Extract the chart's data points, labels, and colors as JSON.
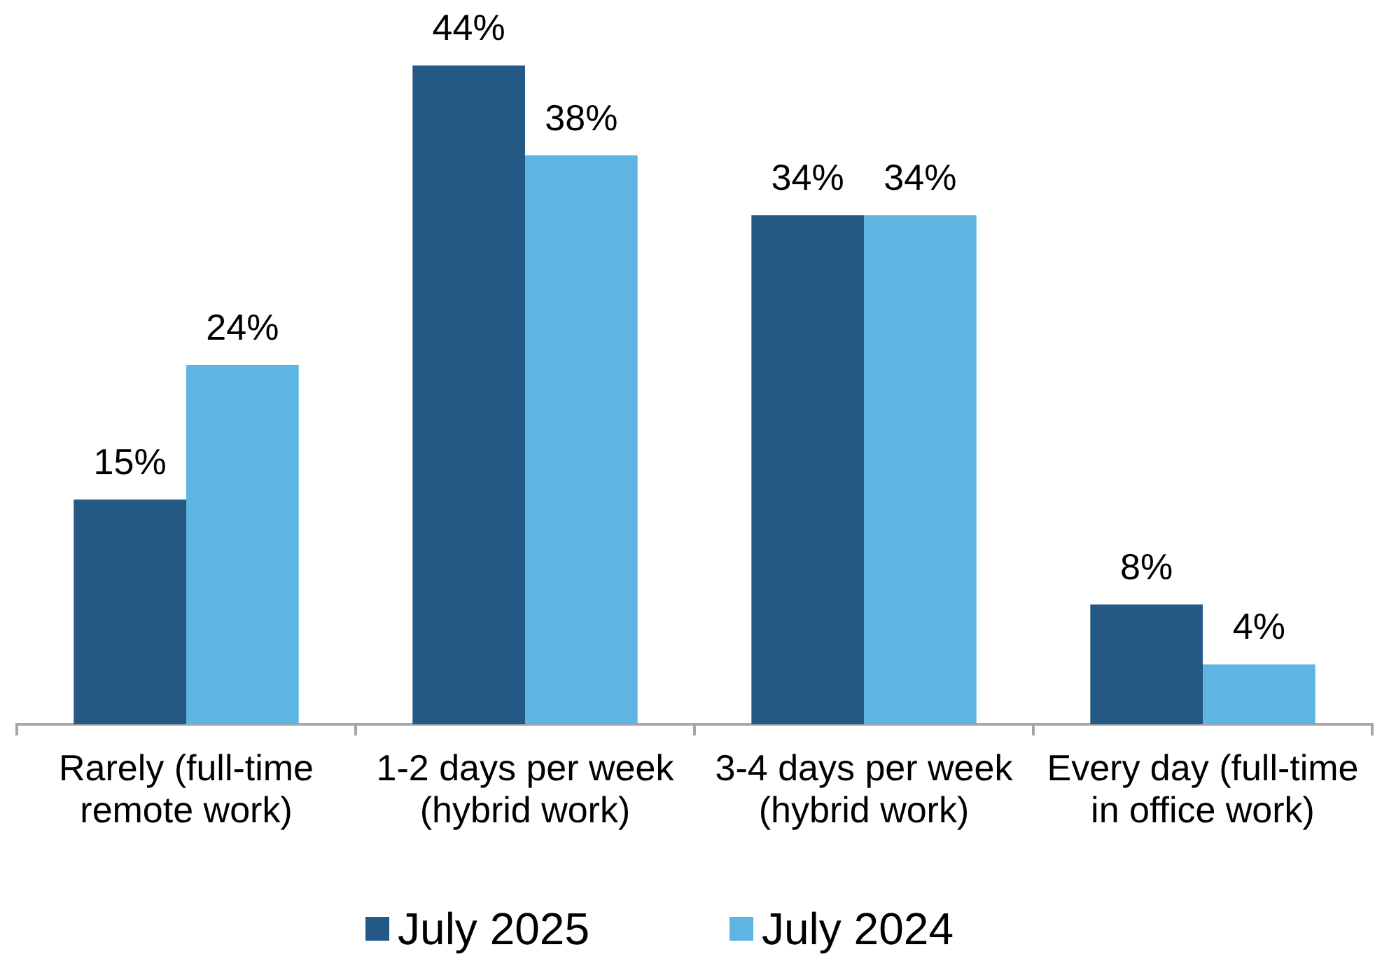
{
  "chart_data": {
    "type": "bar",
    "categories": [
      "Rarely (full-time remote work)",
      "1-2 days per week (hybrid work)",
      "3-4 days per week (hybrid work)",
      "Every day (full-time in office work)"
    ],
    "series": [
      {
        "name": "July 2025",
        "color": "#245985",
        "values": [
          15,
          44,
          34,
          8
        ],
        "value_labels": [
          "15%",
          "44%",
          "34%",
          "8%"
        ]
      },
      {
        "name": "July 2024",
        "color": "#5eb5e2",
        "values": [
          24,
          38,
          34,
          4
        ],
        "value_labels": [
          "24%",
          "38%",
          "34%",
          "4%"
        ]
      }
    ],
    "legend": "bottom",
    "tick_labels": "x"
  }
}
